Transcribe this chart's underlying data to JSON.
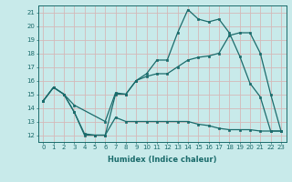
{
  "xlabel": "Humidex (Indice chaleur)",
  "bg_color": "#c8eaea",
  "grid_color": "#d4b8b8",
  "line_color": "#1a6b6b",
  "xlim": [
    -0.5,
    23.5
  ],
  "ylim": [
    11.5,
    21.5
  ],
  "yticks": [
    12,
    13,
    14,
    15,
    16,
    17,
    18,
    19,
    20,
    21
  ],
  "xticks": [
    0,
    1,
    2,
    3,
    4,
    5,
    6,
    7,
    8,
    9,
    10,
    11,
    12,
    13,
    14,
    15,
    16,
    17,
    18,
    19,
    20,
    21,
    22,
    23
  ],
  "line1_x": [
    0,
    1,
    2,
    3,
    4,
    5,
    6,
    7,
    8,
    9,
    10,
    11,
    12,
    13,
    14,
    15,
    16,
    17,
    18,
    19,
    20,
    21,
    22,
    23
  ],
  "line1_y": [
    14.5,
    15.5,
    15.0,
    13.7,
    12.0,
    12.0,
    12.0,
    15.0,
    15.0,
    16.0,
    16.5,
    17.5,
    17.5,
    19.5,
    21.2,
    20.5,
    20.3,
    20.5,
    19.5,
    17.8,
    15.8,
    14.8,
    12.3,
    12.3
  ],
  "line2_x": [
    0,
    1,
    2,
    3,
    6,
    7,
    8,
    9,
    10,
    11,
    12,
    13,
    14,
    15,
    16,
    17,
    18,
    19,
    20,
    21,
    22,
    23
  ],
  "line2_y": [
    14.5,
    15.5,
    15.0,
    14.2,
    13.0,
    15.1,
    15.0,
    16.0,
    16.3,
    16.5,
    16.5,
    17.0,
    17.5,
    17.7,
    17.8,
    18.0,
    19.3,
    19.5,
    19.5,
    18.0,
    15.0,
    12.3
  ],
  "line3_x": [
    0,
    1,
    2,
    3,
    4,
    5,
    6,
    7,
    8,
    9,
    10,
    11,
    12,
    13,
    14,
    15,
    16,
    17,
    18,
    19,
    20,
    21,
    22,
    23
  ],
  "line3_y": [
    14.5,
    15.5,
    15.0,
    13.7,
    12.1,
    12.0,
    12.0,
    13.3,
    13.0,
    13.0,
    13.0,
    13.0,
    13.0,
    13.0,
    13.0,
    12.8,
    12.7,
    12.5,
    12.4,
    12.4,
    12.4,
    12.3,
    12.3,
    12.3
  ]
}
